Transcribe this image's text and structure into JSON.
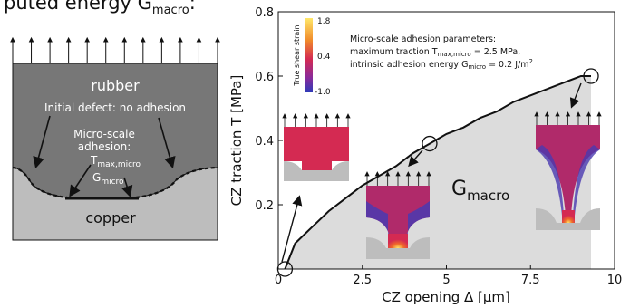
{
  "header": {
    "caption_prefix": "puted energy G",
    "caption_sub": "macro",
    "caption_suffix": ":"
  },
  "schematic": {
    "rubber_label": "rubber",
    "copper_label": "copper",
    "initial_defect": "Initial defect: no adhesion",
    "micro_line1": "Micro-scale",
    "micro_line2": "adhesion:",
    "tmax_main": "T",
    "tmax_sub": "max,micro",
    "gmicro_main": "G",
    "gmicro_sub": "micro"
  },
  "colorbar": {
    "label": "True shear strain",
    "ticks": [
      "1.8",
      "0.4",
      "-1.0"
    ]
  },
  "params": {
    "line1": "Micro-scale adhesion parameters:",
    "line2_pre": "maximum traction T",
    "line2_sub": "max,micro",
    "line2_post": " = 2.5 MPa,",
    "line3_pre": "intrinsic adhesion energy G",
    "line3_sub": "micro",
    "line3_post": " = 0.2 J/m",
    "line3_sup": "2"
  },
  "gmacro": {
    "main": "G",
    "sub": "macro"
  },
  "colors": {
    "rubber_gray": "#777777",
    "copper_gray": "#bdbdbd",
    "area_fill": "#dcdcdc",
    "strain_high": "#ffd84a",
    "strain_mid": "#d42a52",
    "strain_low": "#3a33b8"
  },
  "chart_data": {
    "type": "line",
    "xlabel": "CZ opening Δ [μm]",
    "ylabel": "CZ traction T [MPa]",
    "xlim": [
      0,
      10
    ],
    "ylim": [
      0,
      0.8
    ],
    "xticks": [
      "0",
      "2.5",
      "5",
      "7.5",
      "10"
    ],
    "yticks": [
      "0.2",
      "0.4",
      "0.6",
      "0.8"
    ],
    "grid": false,
    "curve_x": [
      0.2,
      0.5,
      1,
      1.5,
      2,
      2.5,
      3,
      3.5,
      4,
      4.5,
      5,
      5.5,
      6,
      6.5,
      7,
      7.5,
      8,
      8.5,
      9,
      9.3
    ],
    "curve_y": [
      0.0,
      0.08,
      0.13,
      0.18,
      0.22,
      0.26,
      0.29,
      0.32,
      0.36,
      0.39,
      0.42,
      0.44,
      0.47,
      0.49,
      0.52,
      0.54,
      0.56,
      0.58,
      0.6,
      0.6
    ],
    "shaded_area_to_x": 9.3,
    "marked_points": [
      {
        "x": 0.2,
        "y": 0.0
      },
      {
        "x": 4.5,
        "y": 0.39
      },
      {
        "x": 9.3,
        "y": 0.6
      }
    ]
  }
}
